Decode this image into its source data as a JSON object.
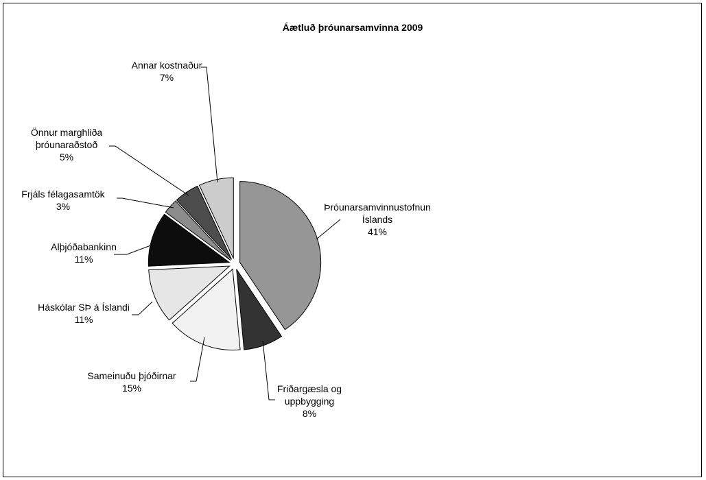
{
  "chart_data": {
    "type": "pie",
    "title": "Áætluð þróunarsamvinna 2009",
    "exploded": true,
    "legend": "none",
    "slices": [
      {
        "label": "Þróunarsamvinnustofnun Íslands",
        "label_lines": [
          "Þróunarsamvinnustofnun",
          "Íslands"
        ],
        "value": 41,
        "value_label": "41%",
        "color": "#969696"
      },
      {
        "label": "Friðargæsla og uppbygging",
        "label_lines": [
          "Friðargæsla og",
          "uppbygging"
        ],
        "value": 8,
        "value_label": "8%",
        "color": "#333333"
      },
      {
        "label": "Sameinuðu þjóðirnar",
        "label_lines": [
          "Sameinuðu þjóðirnar"
        ],
        "value": 15,
        "value_label": "15%",
        "color": "#f2f2f2"
      },
      {
        "label": "Háskólar SÞ á Íslandi",
        "label_lines": [
          "Háskólar SÞ á Íslandi"
        ],
        "value": 11,
        "value_label": "11%",
        "color": "#e6e6e6"
      },
      {
        "label": "Alþjóðabankinn",
        "label_lines": [
          "Alþjóðabankinn"
        ],
        "value": 11,
        "value_label": "11%",
        "color": "#0d0d0d"
      },
      {
        "label": "Frjáls félagasamtök",
        "label_lines": [
          "Frjáls félagasamtök"
        ],
        "value": 3,
        "value_label": "3%",
        "color": "#8c8c8c"
      },
      {
        "label": "Önnur marghliða þróunaraðstoð",
        "label_lines": [
          "Önnur marghliða",
          "þróunaraðstoð"
        ],
        "value": 5,
        "value_label": "5%",
        "color": "#4d4d4d"
      },
      {
        "label": "Annar kostnaður",
        "label_lines": [
          "Annar kostnaður"
        ],
        "value": 7,
        "value_label": "7%",
        "color": "#cccccc"
      }
    ]
  }
}
